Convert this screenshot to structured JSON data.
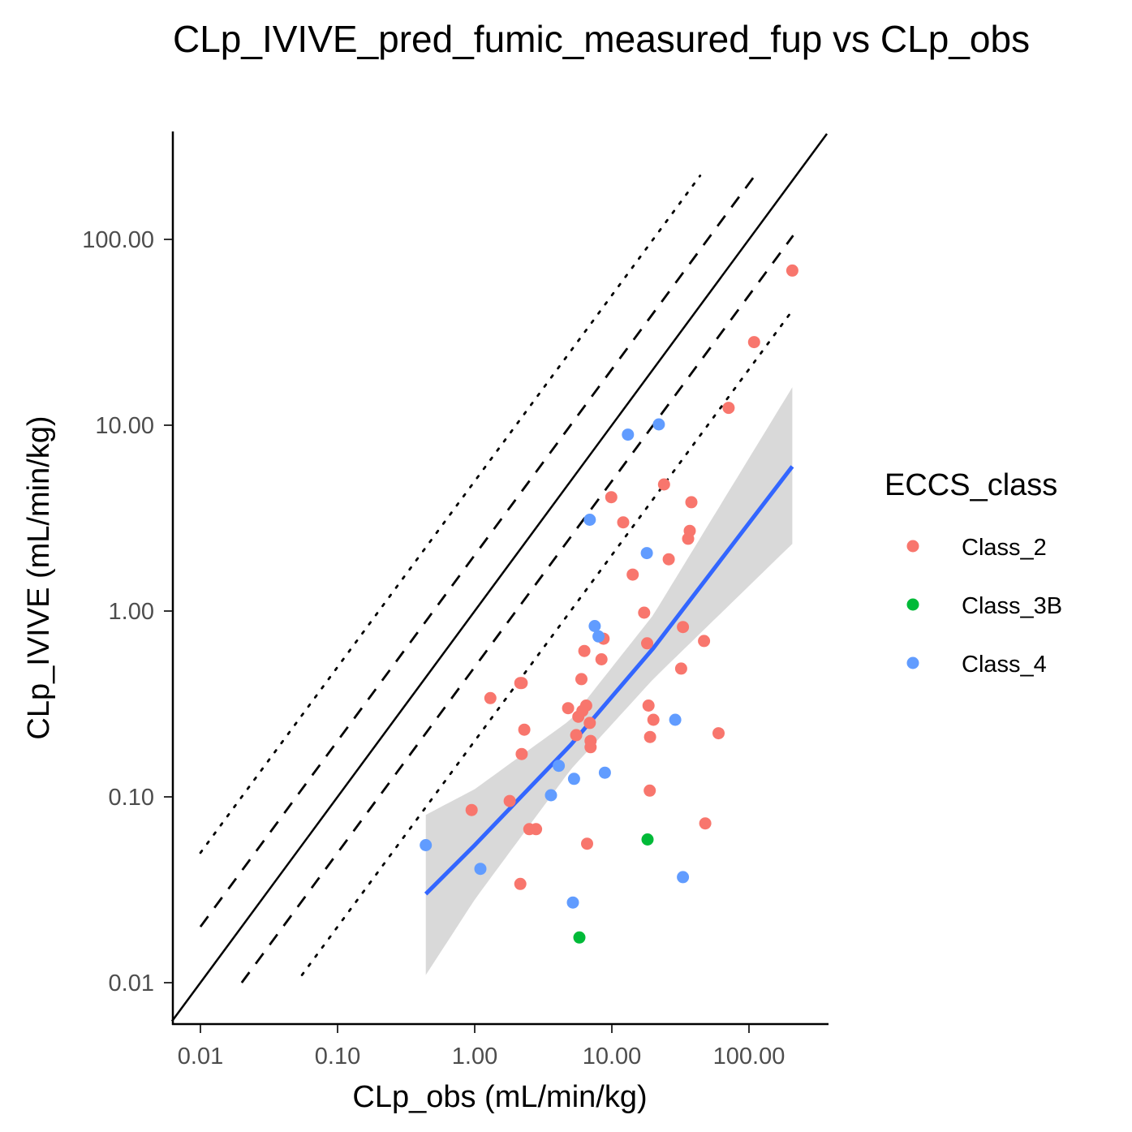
{
  "chart_data": {
    "type": "scatter",
    "title": "CLp_IVIVE_pred_fumic_measured_fup vs CLp_obs",
    "xlabel": "CLp_obs (mL/min/kg)",
    "ylabel": "CLp_IVIVE (mL/min/kg)",
    "x_scale": "log10",
    "y_scale": "log10",
    "xlim": [
      0.0062,
      370
    ],
    "ylim": [
      0.0062,
      355
    ],
    "x_ticks": [
      0.01,
      0.1,
      1,
      10,
      100
    ],
    "x_tick_labels": [
      "0.01",
      "0.10",
      "1.00",
      "10.00",
      "100.00"
    ],
    "y_ticks": [
      0.01,
      0.1,
      1,
      10,
      100
    ],
    "y_tick_labels": [
      "0.01",
      "0.10",
      "1.00",
      "10.00",
      "100.00"
    ],
    "grid": false,
    "legend": {
      "title": "ECCS_class",
      "position": "right",
      "entries": [
        {
          "label": "Class_2",
          "color": "#F8766D"
        },
        {
          "label": "Class_3B",
          "color": "#00BA38"
        },
        {
          "label": "Class_4",
          "color": "#619CFF"
        }
      ]
    },
    "series": [
      {
        "name": "Class_2",
        "color": "#F8766D",
        "points": [
          [
            207,
            68
          ],
          [
            109,
            28
          ],
          [
            71,
            12.4
          ],
          [
            24,
            4.8
          ],
          [
            38,
            3.85
          ],
          [
            37,
            2.7
          ],
          [
            36,
            2.45
          ],
          [
            26,
            1.9
          ],
          [
            9.9,
            4.1
          ],
          [
            12.1,
            3.0
          ],
          [
            14.2,
            1.57
          ],
          [
            17.2,
            0.98
          ],
          [
            18.1,
            0.67
          ],
          [
            33,
            0.82
          ],
          [
            47,
            0.69
          ],
          [
            32,
            0.49
          ],
          [
            18.5,
            0.31
          ],
          [
            20.1,
            0.26
          ],
          [
            19.0,
            0.21
          ],
          [
            60,
            0.22
          ],
          [
            18.9,
            0.108
          ],
          [
            48,
            0.072
          ],
          [
            8.7,
            0.71
          ],
          [
            8.4,
            0.55
          ],
          [
            6.3,
            0.61
          ],
          [
            6.0,
            0.43
          ],
          [
            6.5,
            0.31
          ],
          [
            6.1,
            0.29
          ],
          [
            5.7,
            0.27
          ],
          [
            4.8,
            0.3
          ],
          [
            6.9,
            0.25
          ],
          [
            5.5,
            0.215
          ],
          [
            7.0,
            0.2
          ],
          [
            7.0,
            0.185
          ],
          [
            2.2,
            0.41
          ],
          [
            2.15,
            0.41
          ],
          [
            1.3,
            0.34
          ],
          [
            2.3,
            0.23
          ],
          [
            2.2,
            0.17
          ],
          [
            1.8,
            0.095
          ],
          [
            0.95,
            0.085
          ],
          [
            2.5,
            0.067
          ],
          [
            2.8,
            0.067
          ],
          [
            6.6,
            0.056
          ],
          [
            2.15,
            0.034
          ]
        ]
      },
      {
        "name": "Class_3B",
        "color": "#00BA38",
        "points": [
          [
            18.2,
            0.059
          ],
          [
            5.8,
            0.0175
          ]
        ]
      },
      {
        "name": "Class_4",
        "color": "#619CFF",
        "points": [
          [
            22,
            10.1
          ],
          [
            13.1,
            8.9
          ],
          [
            6.9,
            3.1
          ],
          [
            18.0,
            2.05
          ],
          [
            7.5,
            0.83
          ],
          [
            8.0,
            0.73
          ],
          [
            29,
            0.26
          ],
          [
            8.9,
            0.135
          ],
          [
            4.1,
            0.147
          ],
          [
            5.3,
            0.125
          ],
          [
            3.6,
            0.102
          ],
          [
            0.44,
            0.055
          ],
          [
            1.1,
            0.041
          ],
          [
            5.2,
            0.027
          ],
          [
            33,
            0.037
          ]
        ]
      }
    ],
    "reference_lines": [
      {
        "kind": "identity",
        "style": "solid",
        "x_range": [
          0.0062,
          370
        ],
        "fold": 1
      },
      {
        "kind": "2-fold",
        "style": "dashed",
        "upper": {
          "x_range": [
            0.01,
            110
          ],
          "fold": 2
        },
        "lower": {
          "x_range": [
            0.02,
            210
          ],
          "fold": 0.5
        }
      },
      {
        "kind": "5-fold",
        "style": "dotted",
        "upper": {
          "x_range": [
            0.01,
            44
          ],
          "fold": 5
        },
        "lower": {
          "x_range": [
            0.055,
            210
          ],
          "fold": 0.2
        }
      }
    ],
    "regression": {
      "method": "lm",
      "line_color": "#3366FF",
      "band_color": "#d9d9d9",
      "x": [
        0.44,
        1,
        5,
        20,
        207
      ],
      "fit": [
        0.03,
        0.055,
        0.19,
        0.63,
        6.0
      ],
      "lower": [
        0.011,
        0.028,
        0.14,
        0.43,
        2.3
      ],
      "upper": [
        0.08,
        0.11,
        0.26,
        0.95,
        16
      ]
    }
  }
}
